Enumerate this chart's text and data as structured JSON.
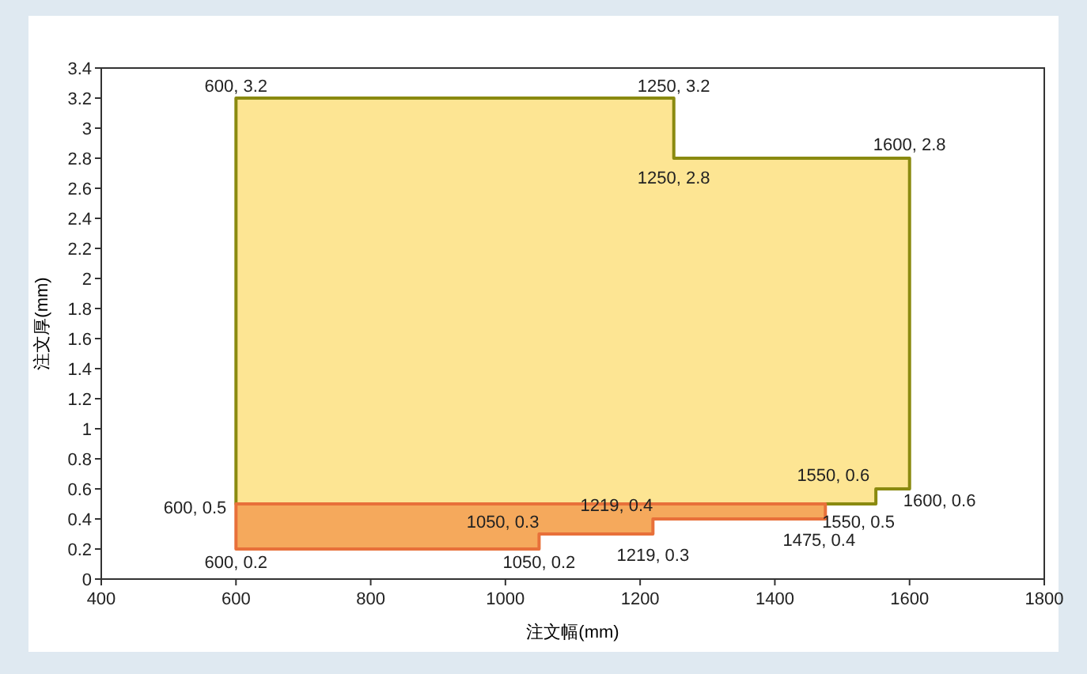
{
  "chart_data": {
    "type": "area",
    "xlabel": "注文幅(mm)",
    "ylabel": "注文厚(mm)",
    "xlim": [
      400,
      1800
    ],
    "xticks": [
      400,
      600,
      800,
      1000,
      1200,
      1400,
      1600,
      1800
    ],
    "ylim": [
      0,
      3.4
    ],
    "yticks": [
      0,
      0.2,
      0.4,
      0.6,
      0.8,
      1,
      1.2,
      1.4,
      1.6,
      1.8,
      2,
      2.2,
      2.4,
      2.6,
      2.8,
      3,
      3.2,
      3.4
    ],
    "grid": false,
    "series": [
      {
        "color": "#fde593",
        "x": [
          600,
          600,
          1250,
          1250,
          1600,
          1600,
          1550,
          1550
        ],
        "values": [
          0.5,
          3.2,
          3.2,
          2.8,
          2.8,
          0.6,
          0.6,
          0.5
        ]
      },
      {
        "color": "#f5a95c",
        "x": [
          600,
          600,
          1475,
          1475,
          1219,
          1219,
          1050,
          1050
        ],
        "values": [
          0.2,
          0.5,
          0.5,
          0.4,
          0.4,
          0.3,
          0.3,
          0.2
        ]
      }
    ],
    "annotations": [
      {
        "text": "600, 3.2",
        "x": 600,
        "y": 3.2
      },
      {
        "text": "1250, 3.2",
        "x": 1250,
        "y": 3.2
      },
      {
        "text": "1250, 2.8",
        "x": 1250,
        "y": 2.8
      },
      {
        "text": "1600, 2.8",
        "x": 1600,
        "y": 2.8
      },
      {
        "text": "1550, 0.6",
        "x": 1550,
        "y": 0.6
      },
      {
        "text": "1600, 0.6",
        "x": 1600,
        "y": 0.6
      },
      {
        "text": "1550, 0.5",
        "x": 1550,
        "y": 0.5
      },
      {
        "text": "600, 0.5",
        "x": 600,
        "y": 0.5
      },
      {
        "text": "1050, 0.3",
        "x": 1050,
        "y": 0.3
      },
      {
        "text": "1219, 0.4",
        "x": 1219,
        "y": 0.4
      },
      {
        "text": "1219, 0.3",
        "x": 1219,
        "y": 0.3
      },
      {
        "text": "1475, 0.4",
        "x": 1475,
        "y": 0.4
      },
      {
        "text": "600, 0.2",
        "x": 600,
        "y": 0.2
      },
      {
        "text": "1050, 0.2",
        "x": 1050,
        "y": 0.2
      }
    ]
  }
}
